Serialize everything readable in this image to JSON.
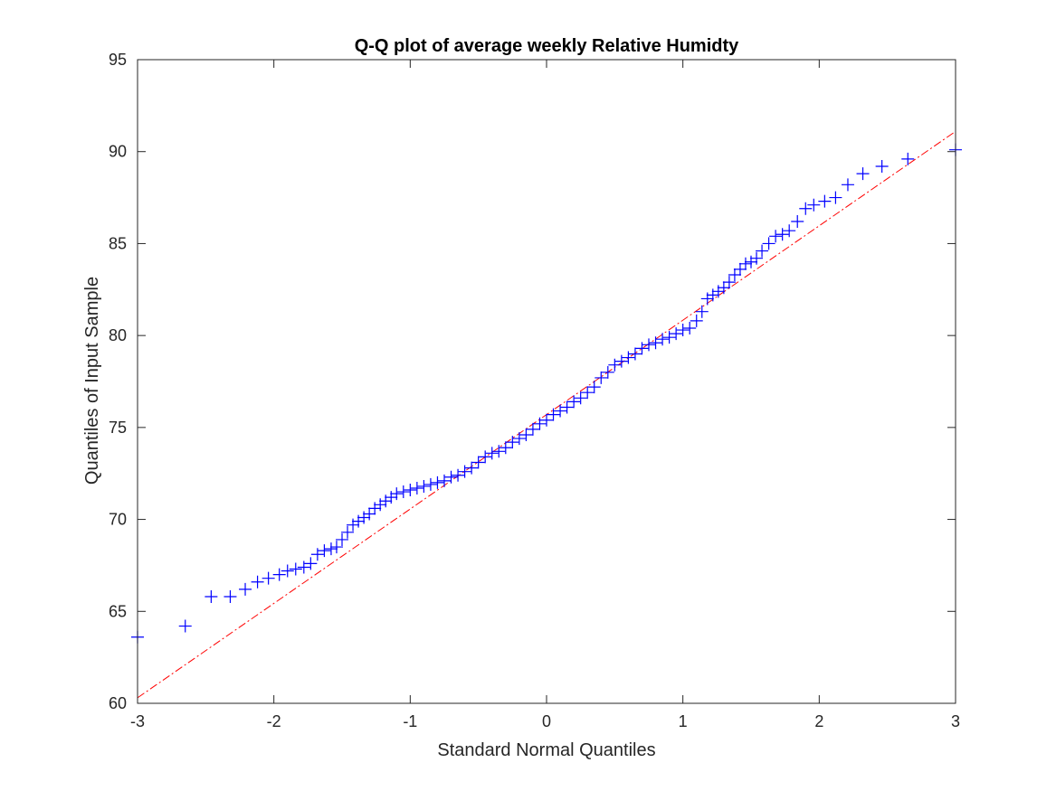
{
  "chart_data": {
    "type": "scatter",
    "title": "Q-Q plot of average weekly Relative Humidty",
    "xlabel": "Standard Normal Quantiles",
    "ylabel": "Quantiles of Input Sample",
    "xlim": [
      -3,
      3
    ],
    "ylim": [
      60,
      95
    ],
    "xticks": [
      -3,
      -2,
      -1,
      0,
      1,
      2,
      3
    ],
    "xtick_labels": [
      "-3",
      "-2",
      "-1",
      "0",
      "1",
      "2",
      "3"
    ],
    "yticks": [
      60,
      65,
      70,
      75,
      80,
      85,
      90,
      95
    ],
    "ytick_labels": [
      "60",
      "65",
      "70",
      "75",
      "80",
      "85",
      "90",
      "95"
    ],
    "grid": false,
    "reference_line": {
      "style": "dash-dot",
      "color": "#ff0000",
      "x": [
        -3,
        3
      ],
      "y": [
        60.3,
        91.1
      ]
    },
    "series": [
      {
        "marker": "plus",
        "color": "#0000ff",
        "x": [
          -3.0,
          -2.65,
          -2.46,
          -2.32,
          -2.21,
          -2.12,
          -2.04,
          -1.96,
          -1.9,
          -1.84,
          -1.78,
          -1.73,
          -1.68,
          -1.63,
          -1.58,
          -1.54,
          -1.5,
          -1.46,
          -1.42,
          -1.38,
          -1.34,
          -1.3,
          -1.26,
          -1.22,
          -1.18,
          -1.14,
          -1.1,
          -1.05,
          -1.0,
          -0.95,
          -0.9,
          -0.85,
          -0.8,
          -0.75,
          -0.7,
          -0.65,
          -0.6,
          -0.55,
          -0.5,
          -0.45,
          -0.4,
          -0.35,
          -0.3,
          -0.25,
          -0.2,
          -0.15,
          -0.1,
          -0.05,
          0.0,
          0.05,
          0.1,
          0.15,
          0.2,
          0.25,
          0.3,
          0.35,
          0.4,
          0.45,
          0.5,
          0.55,
          0.6,
          0.65,
          0.7,
          0.75,
          0.8,
          0.85,
          0.9,
          0.95,
          1.0,
          1.05,
          1.1,
          1.14,
          1.18,
          1.22,
          1.26,
          1.3,
          1.34,
          1.38,
          1.42,
          1.46,
          1.5,
          1.54,
          1.58,
          1.63,
          1.68,
          1.73,
          1.78,
          1.84,
          1.9,
          1.96,
          2.04,
          2.12,
          2.21,
          2.32,
          2.46,
          2.65,
          3.0
        ],
        "y": [
          63.6,
          64.2,
          65.8,
          65.8,
          66.2,
          66.6,
          66.8,
          67.0,
          67.2,
          67.3,
          67.4,
          67.6,
          68.1,
          68.3,
          68.4,
          68.5,
          68.9,
          69.3,
          69.7,
          69.9,
          70.1,
          70.3,
          70.6,
          70.8,
          71.0,
          71.2,
          71.4,
          71.5,
          71.6,
          71.7,
          71.8,
          71.9,
          72.0,
          72.1,
          72.3,
          72.4,
          72.6,
          72.8,
          73.1,
          73.4,
          73.6,
          73.7,
          73.9,
          74.2,
          74.4,
          74.6,
          74.9,
          75.2,
          75.4,
          75.7,
          75.9,
          76.1,
          76.4,
          76.6,
          76.9,
          77.2,
          77.7,
          78.0,
          78.4,
          78.6,
          78.8,
          79.0,
          79.3,
          79.5,
          79.6,
          79.8,
          79.9,
          80.1,
          80.3,
          80.4,
          80.8,
          81.3,
          82.0,
          82.2,
          82.4,
          82.6,
          82.9,
          83.3,
          83.6,
          83.9,
          84.0,
          84.2,
          84.6,
          85.0,
          85.4,
          85.5,
          85.7,
          86.2,
          86.9,
          87.1,
          87.3,
          87.5,
          88.2,
          88.8,
          89.2,
          89.6,
          90.1
        ]
      }
    ]
  }
}
